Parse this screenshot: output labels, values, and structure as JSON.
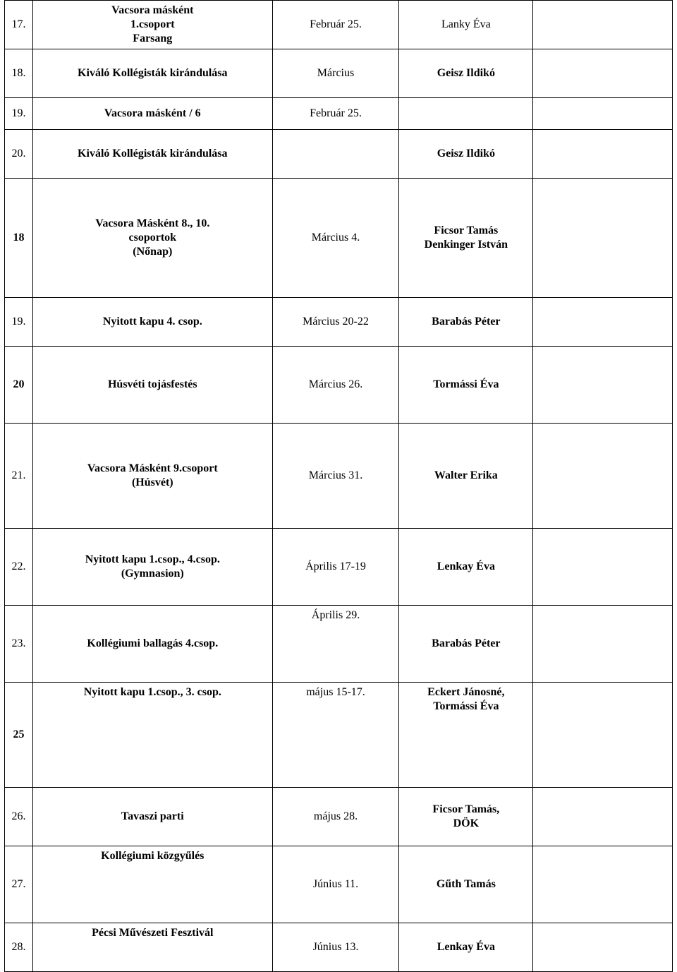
{
  "table": {
    "columns_pct": [
      4.2,
      35.8,
      19.0,
      20.0,
      21.0
    ],
    "border_color": "#000000",
    "background_color": "#ffffff",
    "font_family": "Times New Roman",
    "base_font_size_pt": 12,
    "rows": [
      {
        "num": "17.",
        "event_line1": "Vacsora másként",
        "event_line2": "1.csoport",
        "event_line3": "Farsang",
        "date": "Február 25.",
        "person": "Lanky Éva",
        "extra": "",
        "height_class": "h-med",
        "event_bold": true,
        "date_bold": false,
        "person_bold": false
      },
      {
        "num": "18.",
        "event": "Kiváló Kollégisták kirándulása",
        "date": "Március",
        "person": "Geisz Ildikó",
        "extra": "",
        "height_class": "h-med",
        "event_bold": true,
        "date_bold": false,
        "person_bold": true
      },
      {
        "num": "19.",
        "event": "Vacsora másként / 6",
        "date": "Február 25.",
        "person": "",
        "extra": "",
        "height_class": "h-sm",
        "event_bold": true,
        "date_bold": false,
        "person_bold": false
      },
      {
        "num": "20.",
        "event": "Kiváló Kollégisták kirándulása",
        "date": "",
        "person": "Geisz Ildikó",
        "extra": "",
        "height_class": "h-med",
        "event_bold": true,
        "date_bold": false,
        "person_bold": true
      },
      {
        "num": "18",
        "event_line1": "Vacsora Másként  8., 10.",
        "event_line2": "csoportok",
        "event_line3": "(Nőnap)",
        "date": "Március 4.",
        "person_line1": "Ficsor Tamás",
        "person_line2": "Denkinger István",
        "extra": "",
        "height_class": "h-xxl",
        "event_bold": true,
        "date_bold": false,
        "person_bold": true,
        "num_bold": true
      },
      {
        "num": "19.",
        "event": "Nyitott kapu 4. csop.",
        "date": "Március 20-22",
        "person": "Barabás Péter",
        "extra": "",
        "height_class": "h-med",
        "event_bold": true,
        "date_bold": false,
        "person_bold": true
      },
      {
        "num": "20",
        "event": "Húsvéti tojásfestés",
        "date": "Március 26.",
        "person": "Tormássi Éva",
        "extra": "",
        "height_class": "h-lg",
        "event_bold": true,
        "date_bold": false,
        "person_bold": true,
        "num_bold": true
      },
      {
        "num": "21.",
        "event_line1": "Vacsora Másként 9.csoport",
        "event_line2": "(Húsvét)",
        "date": "Március 31.",
        "person": "Walter Erika",
        "extra": "",
        "height_class": "h-xl",
        "event_bold": true,
        "date_bold": false,
        "person_bold": true
      },
      {
        "num": "22.",
        "event_line1": "Nyitott kapu 1.csop., 4.csop.",
        "event_line2": "(Gymnasion)",
        "date": "Április 17-19",
        "person": "Lenkay Éva",
        "extra": "",
        "height_class": "h-lg",
        "event_bold": true,
        "date_bold": false,
        "person_bold": true
      },
      {
        "num": "23.",
        "event": "Kollégiumi ballagás 4.csop.",
        "date": "Április 29.",
        "person": "Barabás Péter",
        "extra": "",
        "height_class": "h-lg",
        "event_bold": true,
        "date_bold": false,
        "person_bold": true,
        "date_valign": "top"
      },
      {
        "num": "25",
        "event": "Nyitott kapu 1.csop., 3. csop.",
        "date": "május 15-17.",
        "person_line1": "Eckert Jánosné,",
        "person_line2": "Tormássi Éva",
        "extra": "",
        "height_class": "h-xl",
        "event_bold": true,
        "date_bold": false,
        "person_bold": true,
        "num_bold": true,
        "event_valign": "top",
        "date_valign": "top",
        "person_valign": "top"
      },
      {
        "num": "26.",
        "event": "Tavaszi parti",
        "date": "május 28.",
        "person_line1": "Ficsor Tamás,",
        "person_line2": "DÖK",
        "extra": "",
        "height_class": "h-med2",
        "event_bold": true,
        "date_bold": false,
        "person_bold": true
      },
      {
        "num": "27.",
        "event": "Kollégiumi közgyűlés",
        "date": "Június 11.",
        "person": "Gűth Tamás",
        "extra": "",
        "height_class": "h-lg",
        "event_bold": true,
        "date_bold": false,
        "person_bold": true,
        "event_valign": "top"
      },
      {
        "num": "28.",
        "event": "Pécsi Művészeti Fesztivál",
        "date": "Június 13.",
        "person": "Lenkay Éva",
        "extra": "",
        "height_class": "h-med",
        "event_bold": true,
        "date_bold": false,
        "person_bold": true,
        "event_valign": "top"
      }
    ]
  }
}
